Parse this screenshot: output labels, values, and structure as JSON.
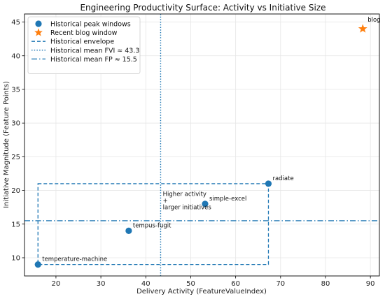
{
  "chart_data": {
    "type": "scatter",
    "title": "Engineering Productivity Surface: Activity vs Initiative Size",
    "xlabel": "Delivery Activity (FeatureValueIndex)",
    "ylabel": "Initiative Magnitude (Feature Points)",
    "xlim": [
      13,
      92
    ],
    "ylim": [
      7.3,
      46.2
    ],
    "x_ticks": [
      20,
      30,
      40,
      50,
      60,
      70,
      80,
      90
    ],
    "y_ticks": [
      10,
      15,
      20,
      25,
      30,
      35,
      40,
      45
    ],
    "grid": true,
    "legend_position": "top-left",
    "colors": {
      "blue": "#1f77b4",
      "orange": "#ff7f0e"
    },
    "series": [
      {
        "name": "Historical peak windows",
        "marker": "circle",
        "color": "#1f77b4",
        "points": [
          {
            "label": "temperature-machine",
            "x": 16.0,
            "y": 9.0
          },
          {
            "label": "tempus-fugit",
            "x": 36.2,
            "y": 14.0
          },
          {
            "label": "simple-excel",
            "x": 53.2,
            "y": 18.0
          },
          {
            "label": "radiate",
            "x": 67.3,
            "y": 21.0
          }
        ]
      },
      {
        "name": "Recent blog window",
        "marker": "star",
        "color": "#ff7f0e",
        "points": [
          {
            "label": "blog",
            "x": 88.3,
            "y": 44.0
          }
        ]
      }
    ],
    "envelope": {
      "name": "Historical envelope",
      "x_min": 16.0,
      "x_max": 67.3,
      "y_min": 9.0,
      "y_max": 21.0
    },
    "reference_lines": [
      {
        "name": "Historical mean FVI ≈ 43.3",
        "orientation": "vertical",
        "value": 43.3,
        "style": "dotted"
      },
      {
        "name": "Historical mean FP ≈ 15.5",
        "orientation": "horizontal",
        "value": 15.5,
        "style": "dashdot"
      }
    ],
    "annotations": [
      {
        "lines": [
          "Higher activity",
          "+",
          "larger initiatives"
        ],
        "x": 43.8,
        "y": 19.2
      }
    ]
  }
}
